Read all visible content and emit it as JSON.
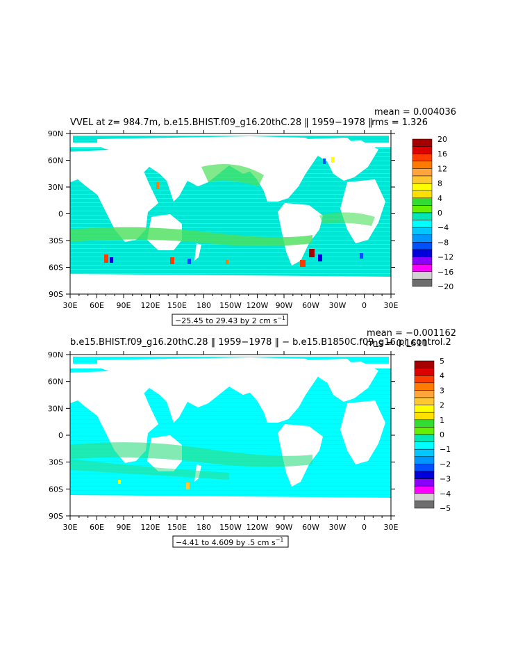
{
  "chart_data": [
    {
      "type": "heatmap",
      "title": "VVEL at z= 984.7m, b.e15.BHIST.f09_g16.20thC.28 ‖ 1959−1978 ‖",
      "stats": {
        "mean": "mean = 0.004036",
        "rms": "rms = 1.326"
      },
      "range_label": "−25.45 to 29.43 by 2 cm s",
      "range_sup": "−1",
      "x_ticks": [
        "30E",
        "60E",
        "90E",
        "120E",
        "150E",
        "180",
        "150W",
        "120W",
        "90W",
        "60W",
        "30W",
        "0",
        "30E"
      ],
      "y_ticks": [
        "90N",
        "60N",
        "30N",
        "0",
        "30S",
        "60S",
        "90S"
      ],
      "colorbar": {
        "labels": [
          "20",
          "16",
          "12",
          "8",
          "4",
          "0",
          "−4",
          "−8",
          "−12",
          "−16",
          "−20"
        ],
        "colors": [
          "#a50000",
          "#dc0000",
          "#ff3c00",
          "#ff7a00",
          "#ffa53c",
          "#ffc832",
          "#ffff00",
          "#ffe000",
          "#32dc32",
          "#64f000",
          "#00e6b4",
          "#00ffff",
          "#00c8ff",
          "#0096ff",
          "#0050ff",
          "#0000dc",
          "#8a00ff",
          "#ff00ff",
          "#d2d2d2",
          "#6e6e6e"
        ]
      }
    },
    {
      "type": "heatmap",
      "title": "b.e15.BHIST.f09_g16.20thC.28 ‖ 1959−1978 ‖ − b.e15.B1850C.f09_g16.pi_control.2",
      "stats": {
        "mean": "mean = −0.001162",
        "rms": "rms = 0.1611"
      },
      "range_label": "−4.41 to 4.609 by .5 cm s",
      "range_sup": "−1",
      "x_ticks": [
        "30E",
        "60E",
        "90E",
        "120E",
        "150E",
        "180",
        "150W",
        "120W",
        "90W",
        "60W",
        "30W",
        "0",
        "30E"
      ],
      "y_ticks": [
        "90N",
        "60N",
        "30N",
        "0",
        "30S",
        "60S",
        "90S"
      ],
      "colorbar": {
        "labels": [
          "5",
          "4",
          "3",
          "2",
          "1",
          "0",
          "−1",
          "−2",
          "−3",
          "−4",
          "−5"
        ],
        "colors": [
          "#a50000",
          "#dc0000",
          "#ff3c00",
          "#ff7a00",
          "#ffa53c",
          "#ffc832",
          "#ffff00",
          "#ffe000",
          "#32dc32",
          "#64f000",
          "#00e6b4",
          "#00ffff",
          "#00c8ff",
          "#0096ff",
          "#0050ff",
          "#0000dc",
          "#8a00ff",
          "#ff00ff",
          "#d2d2d2",
          "#6e6e6e"
        ]
      }
    }
  ]
}
